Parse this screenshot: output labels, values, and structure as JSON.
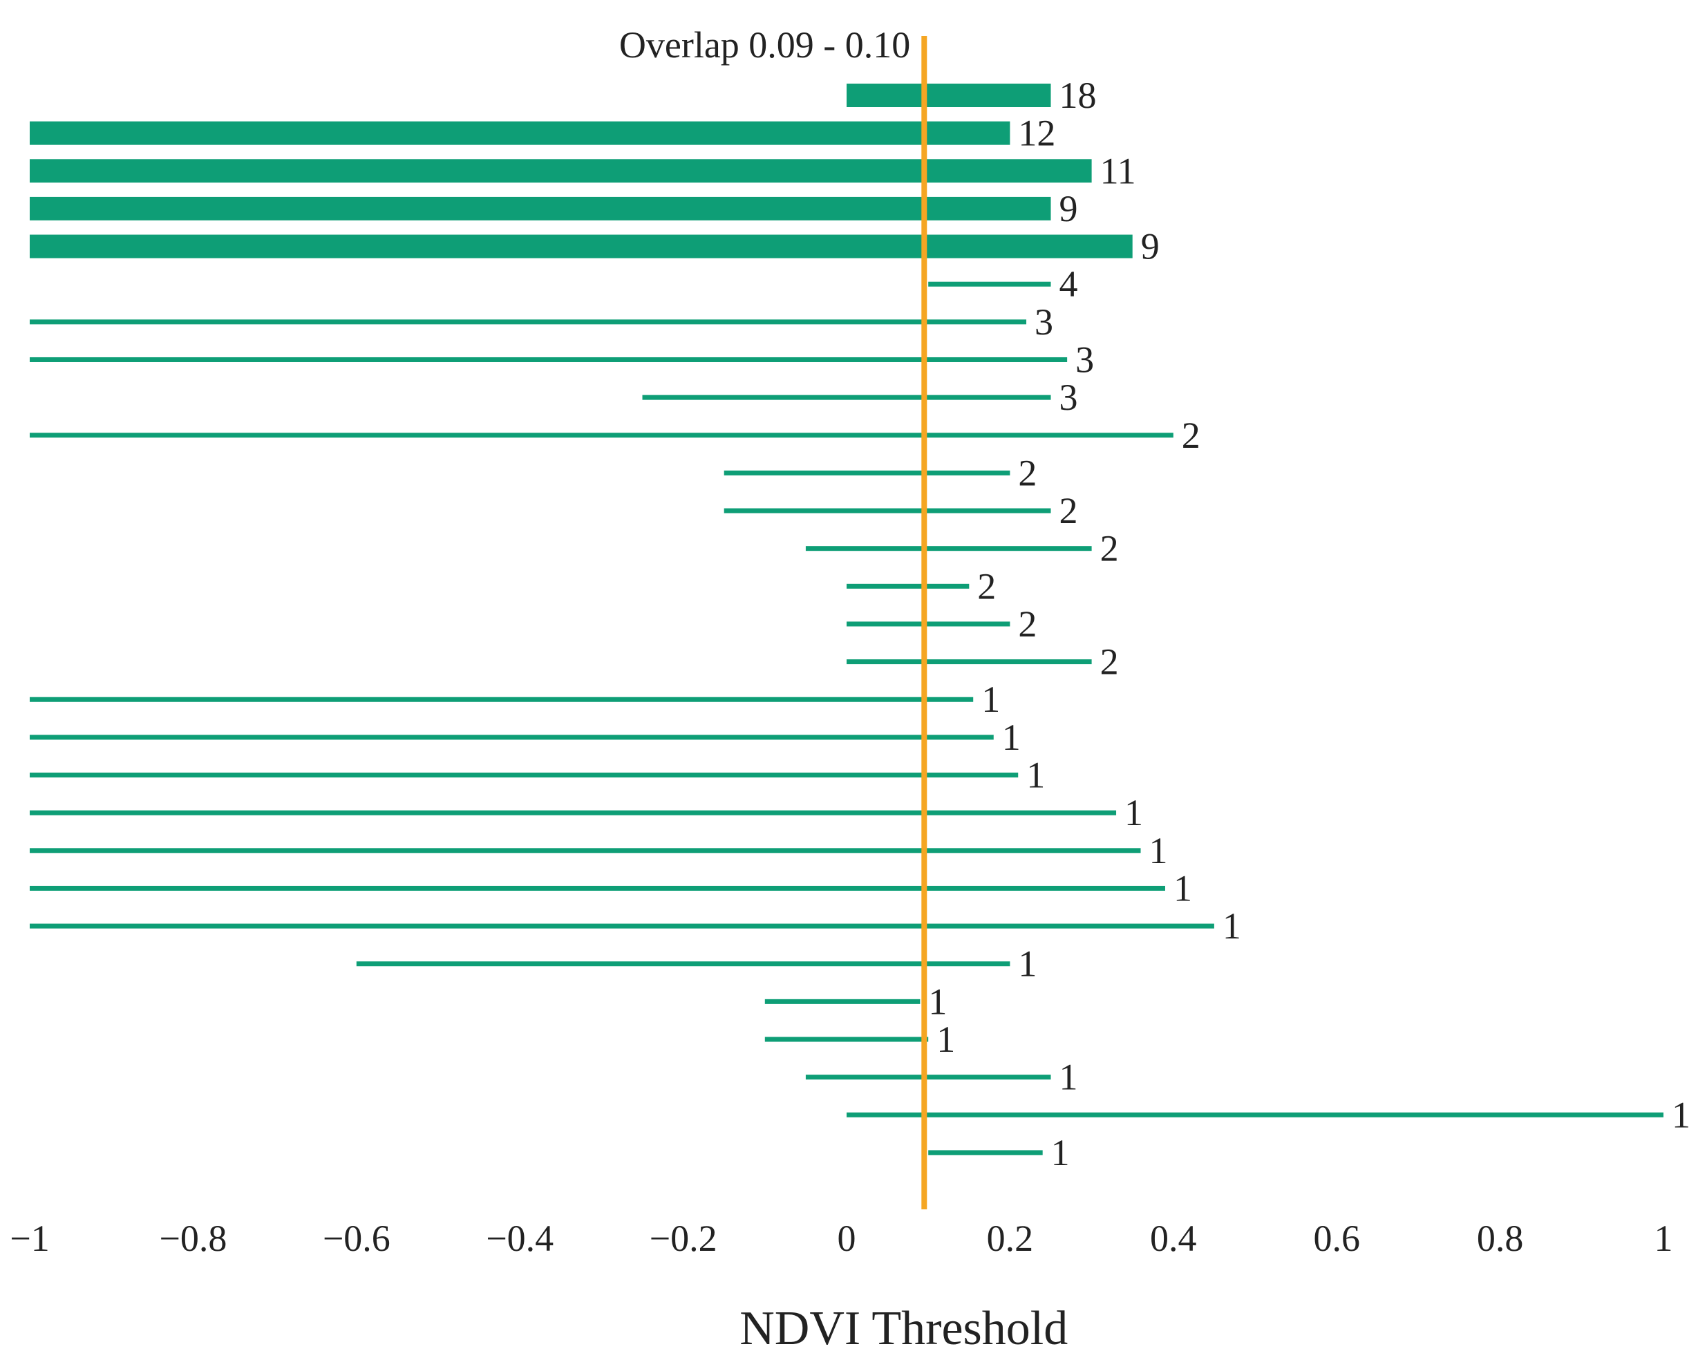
{
  "chart_data": {
    "type": "range-bar",
    "xlabel": "NDVI Threshold",
    "xlim": [
      -1,
      1
    ],
    "xticks": [
      -1,
      -0.8,
      -0.6,
      -0.4,
      -0.2,
      0,
      0.2,
      0.4,
      0.6,
      0.8,
      1
    ],
    "xtick_labels": [
      "−1",
      "−0.8",
      "−0.6",
      "−0.4",
      "−0.2",
      "0",
      "0.2",
      "0.4",
      "0.6",
      "0.8",
      "1"
    ],
    "overlap": {
      "label": "Overlap 0.09 - 0.10",
      "value": 0.095,
      "color": "#F5A623"
    },
    "bar_color": "#0E9E76",
    "thick_threshold": 5,
    "ranges": [
      {
        "start": 0.0,
        "end": 0.25,
        "count": 18
      },
      {
        "start": -1.0,
        "end": 0.2,
        "count": 12
      },
      {
        "start": -1.0,
        "end": 0.3,
        "count": 11
      },
      {
        "start": -1.0,
        "end": 0.25,
        "count": 9
      },
      {
        "start": -1.0,
        "end": 0.35,
        "count": 9
      },
      {
        "start": 0.1,
        "end": 0.25,
        "count": 4
      },
      {
        "start": -1.0,
        "end": 0.22,
        "count": 3
      },
      {
        "start": -1.0,
        "end": 0.27,
        "count": 3
      },
      {
        "start": -0.25,
        "end": 0.25,
        "count": 3
      },
      {
        "start": -1.0,
        "end": 0.4,
        "count": 2
      },
      {
        "start": -0.15,
        "end": 0.2,
        "count": 2
      },
      {
        "start": -0.15,
        "end": 0.25,
        "count": 2
      },
      {
        "start": -0.05,
        "end": 0.3,
        "count": 2
      },
      {
        "start": 0.0,
        "end": 0.15,
        "count": 2
      },
      {
        "start": 0.0,
        "end": 0.2,
        "count": 2
      },
      {
        "start": 0.0,
        "end": 0.3,
        "count": 2
      },
      {
        "start": -1.0,
        "end": 0.155,
        "count": 1
      },
      {
        "start": -1.0,
        "end": 0.18,
        "count": 1
      },
      {
        "start": -1.0,
        "end": 0.21,
        "count": 1
      },
      {
        "start": -1.0,
        "end": 0.33,
        "count": 1
      },
      {
        "start": -1.0,
        "end": 0.36,
        "count": 1
      },
      {
        "start": -1.0,
        "end": 0.39,
        "count": 1
      },
      {
        "start": -1.0,
        "end": 0.45,
        "count": 1
      },
      {
        "start": -0.6,
        "end": 0.2,
        "count": 1
      },
      {
        "start": -0.1,
        "end": 0.09,
        "count": 1
      },
      {
        "start": -0.1,
        "end": 0.1,
        "count": 1
      },
      {
        "start": -0.05,
        "end": 0.25,
        "count": 1
      },
      {
        "start": 0.0,
        "end": 1.0,
        "count": 1
      },
      {
        "start": 0.1,
        "end": 0.24,
        "count": 1
      }
    ]
  }
}
